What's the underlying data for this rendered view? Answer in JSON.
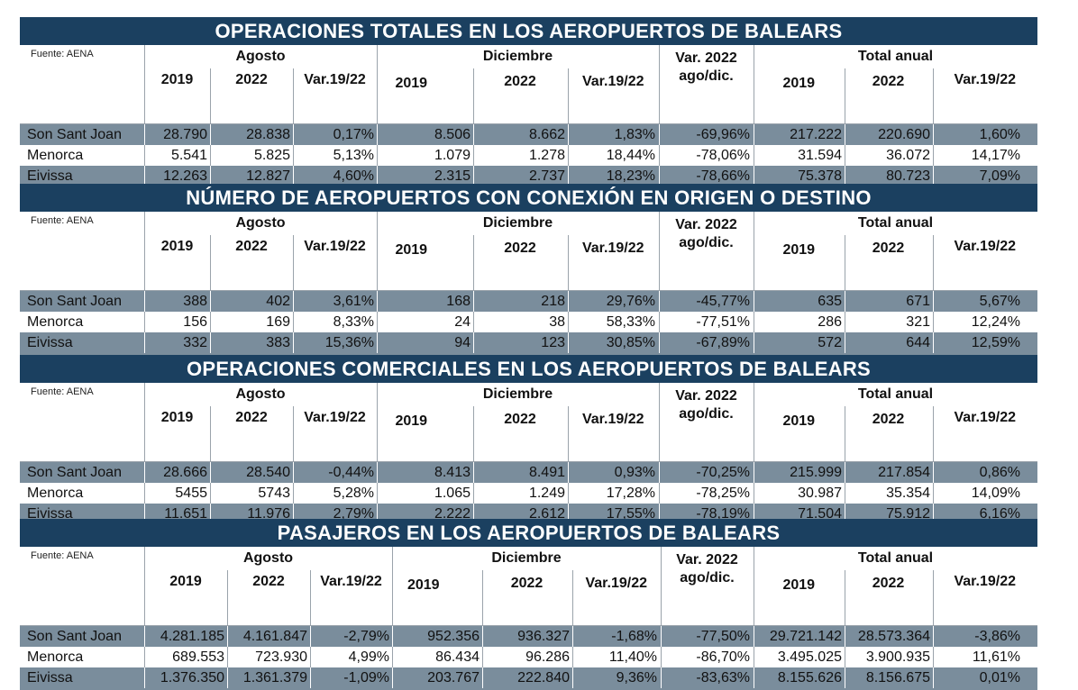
{
  "source": "Fuente: AENA",
  "headers": {
    "agosto": "Agosto",
    "diciembre": "Diciembre",
    "var2022_line1": "Var. 2022",
    "var2022_line2": "ago/dic.",
    "total": "Total anual",
    "y2019": "2019",
    "y2022": "2022",
    "var": "Var.19/22"
  },
  "tables": [
    {
      "title": "OPERACIONES TOTALES EN LOS AEROPUERTOS DE BALEARS",
      "rows": [
        {
          "airport": "Son Sant Joan",
          "ago2019": "28.790",
          "ago2022": "28.838",
          "agoVar": "0,17%",
          "dic2019": "8.506",
          "dic2022": "8.662",
          "dicVar": "1,83%",
          "var2022": "-69,96%",
          "tot2019": "217.222",
          "tot2022": "220.690",
          "totVar": "1,60%"
        },
        {
          "airport": "Menorca",
          "ago2019": "5.541",
          "ago2022": "5.825",
          "agoVar": "5,13%",
          "dic2019": "1.079",
          "dic2022": "1.278",
          "dicVar": "18,44%",
          "var2022": "-78,06%",
          "tot2019": "31.594",
          "tot2022": "36.072",
          "totVar": "14,17%"
        },
        {
          "airport": "Eivissa",
          "ago2019": "12.263",
          "ago2022": "12.827",
          "agoVar": "4,60%",
          "dic2019": "2.315",
          "dic2022": "2.737",
          "dicVar": "18,23%",
          "var2022": "-78,66%",
          "tot2019": "75.378",
          "tot2022": "80.723",
          "totVar": "7,09%"
        }
      ]
    },
    {
      "title": "NÚMERO DE AEROPUERTOS CON CONEXIÓN EN ORIGEN O DESTINO",
      "rows": [
        {
          "airport": "Son Sant Joan",
          "ago2019": "388",
          "ago2022": "402",
          "agoVar": "3,61%",
          "dic2019": "168",
          "dic2022": "218",
          "dicVar": "29,76%",
          "var2022": "-45,77%",
          "tot2019": "635",
          "tot2022": "671",
          "totVar": "5,67%"
        },
        {
          "airport": "Menorca",
          "ago2019": "156",
          "ago2022": "169",
          "agoVar": "8,33%",
          "dic2019": "24",
          "dic2022": "38",
          "dicVar": "58,33%",
          "var2022": "-77,51%",
          "tot2019": "286",
          "tot2022": "321",
          "totVar": "12,24%"
        },
        {
          "airport": "Eivissa",
          "ago2019": "332",
          "ago2022": "383",
          "agoVar": "15,36%",
          "dic2019": "94",
          "dic2022": "123",
          "dicVar": "30,85%",
          "var2022": "-67,89%",
          "tot2019": "572",
          "tot2022": "644",
          "totVar": "12,59%"
        }
      ]
    },
    {
      "title": "OPERACIONES COMERCIALES EN LOS AEROPUERTOS DE BALEARS",
      "rows": [
        {
          "airport": "Son Sant Joan",
          "ago2019": "28.666",
          "ago2022": "28.540",
          "agoVar": "-0,44%",
          "dic2019": "8.413",
          "dic2022": "8.491",
          "dicVar": "0,93%",
          "var2022": "-70,25%",
          "tot2019": "215.999",
          "tot2022": "217.854",
          "totVar": "0,86%"
        },
        {
          "airport": "Menorca",
          "ago2019": "5455",
          "ago2022": "5743",
          "agoVar": "5,28%",
          "dic2019": "1.065",
          "dic2022": "1.249",
          "dicVar": "17,28%",
          "var2022": "-78,25%",
          "tot2019": "30.987",
          "tot2022": "35.354",
          "totVar": "14,09%"
        },
        {
          "airport": "Eivissa",
          "ago2019": "11.651",
          "ago2022": "11.976",
          "agoVar": "2,79%",
          "dic2019": "2.222",
          "dic2022": "2.612",
          "dicVar": "17,55%",
          "var2022": "-78,19%",
          "tot2019": "71.504",
          "tot2022": "75.912",
          "totVar": "6,16%"
        }
      ]
    },
    {
      "title": "PASAJEROS EN LOS AEROPUERTOS DE BALEARS",
      "rows": [
        {
          "airport": "Son Sant Joan",
          "ago2019": "4.281.185",
          "ago2022": "4.161.847",
          "agoVar": "-2,79%",
          "dic2019": "952.356",
          "dic2022": "936.327",
          "dicVar": "-1,68%",
          "var2022": "-77,50%",
          "tot2019": "29.721.142",
          "tot2022": "28.573.364",
          "totVar": "-3,86%"
        },
        {
          "airport": "Menorca",
          "ago2019": "689.553",
          "ago2022": "723.930",
          "agoVar": "4,99%",
          "dic2019": "86.434",
          "dic2022": "96.286",
          "dicVar": "11,40%",
          "var2022": "-86,70%",
          "tot2019": "3.495.025",
          "tot2022": "3.900.935",
          "totVar": "11,61%"
        },
        {
          "airport": "Eivissa",
          "ago2019": "1.376.350",
          "ago2022": "1.361.379",
          "agoVar": "-1,09%",
          "dic2019": "203.767",
          "dic2022": "222.840",
          "dicVar": "9,36%",
          "var2022": "-83,63%",
          "tot2019": "8.155.626",
          "tot2022": "8.156.675",
          "totVar": "0,01%"
        }
      ]
    }
  ]
}
